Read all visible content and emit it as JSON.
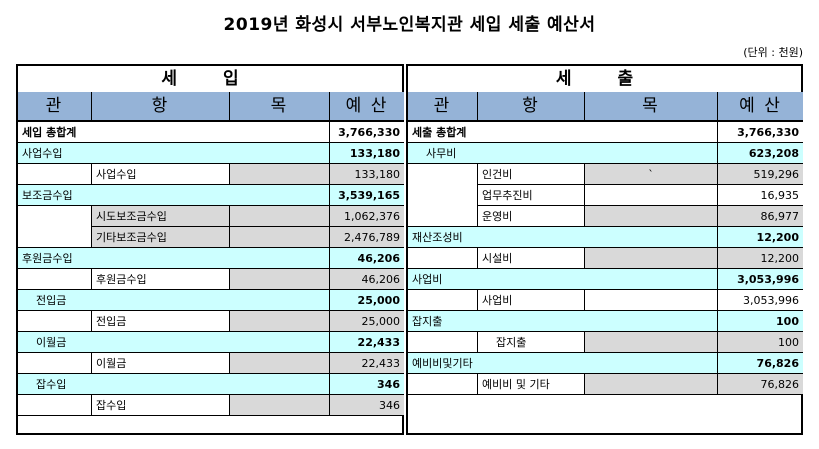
{
  "title": "2019년 화성시 서부노인복지관 세입 세출 예산서",
  "unit": "(단위 : 천원)",
  "income": {
    "section_label": "세 입",
    "headers": [
      "관",
      "항",
      "목",
      "예 산"
    ],
    "total_label": "세입 총합계",
    "total_value": "3,766,330",
    "groups": [
      {
        "label": "사업수입",
        "value": "133,180",
        "items": [
          {
            "label": "사업수입",
            "value": "133,180"
          }
        ]
      },
      {
        "label": "보조금수입",
        "value": "3,539,165",
        "items": [
          {
            "label": "시도보조금수입",
            "value": "1,062,376"
          },
          {
            "label": "기타보조금수입",
            "value": "2,476,789"
          }
        ]
      },
      {
        "label": "후원금수입",
        "value": "46,206",
        "items": [
          {
            "label": "후원금수입",
            "value": "46,206"
          }
        ]
      },
      {
        "label": "전입금",
        "value": "25,000",
        "items": [
          {
            "label": "전입금",
            "value": "25,000"
          }
        ]
      },
      {
        "label": "이월금",
        "value": "22,433",
        "items": [
          {
            "label": "이월금",
            "value": "22,433"
          }
        ]
      },
      {
        "label": "잡수입",
        "value": "346",
        "items": [
          {
            "label": "잡수입",
            "value": "346"
          }
        ]
      }
    ]
  },
  "expense": {
    "section_label": "세 출",
    "headers": [
      "관",
      "항",
      "목",
      "예 산"
    ],
    "total_label": "세출 총합계",
    "total_value": "3,766,330",
    "stray_mark": "`",
    "groups": [
      {
        "label": "사무비",
        "value": "623,208",
        "items": [
          {
            "label": "인건비",
            "value": "519,296"
          },
          {
            "label": "업무추진비",
            "value": "16,935"
          },
          {
            "label": "운영비",
            "value": "86,977"
          }
        ]
      },
      {
        "label": "재산조성비",
        "value": "12,200",
        "items": [
          {
            "label": "시설비",
            "value": "12,200"
          }
        ]
      },
      {
        "label": "사업비",
        "value": "3,053,996",
        "items": [
          {
            "label": "사업비",
            "value": "3,053,996"
          }
        ]
      },
      {
        "label": "잡지출",
        "value": "100",
        "items": [
          {
            "label": "잡지출",
            "value": "100"
          }
        ]
      },
      {
        "label": "예비비및기타",
        "value": "76,826",
        "items": [
          {
            "label": "예비비 및 기타",
            "value": "76,826"
          }
        ]
      }
    ]
  }
}
